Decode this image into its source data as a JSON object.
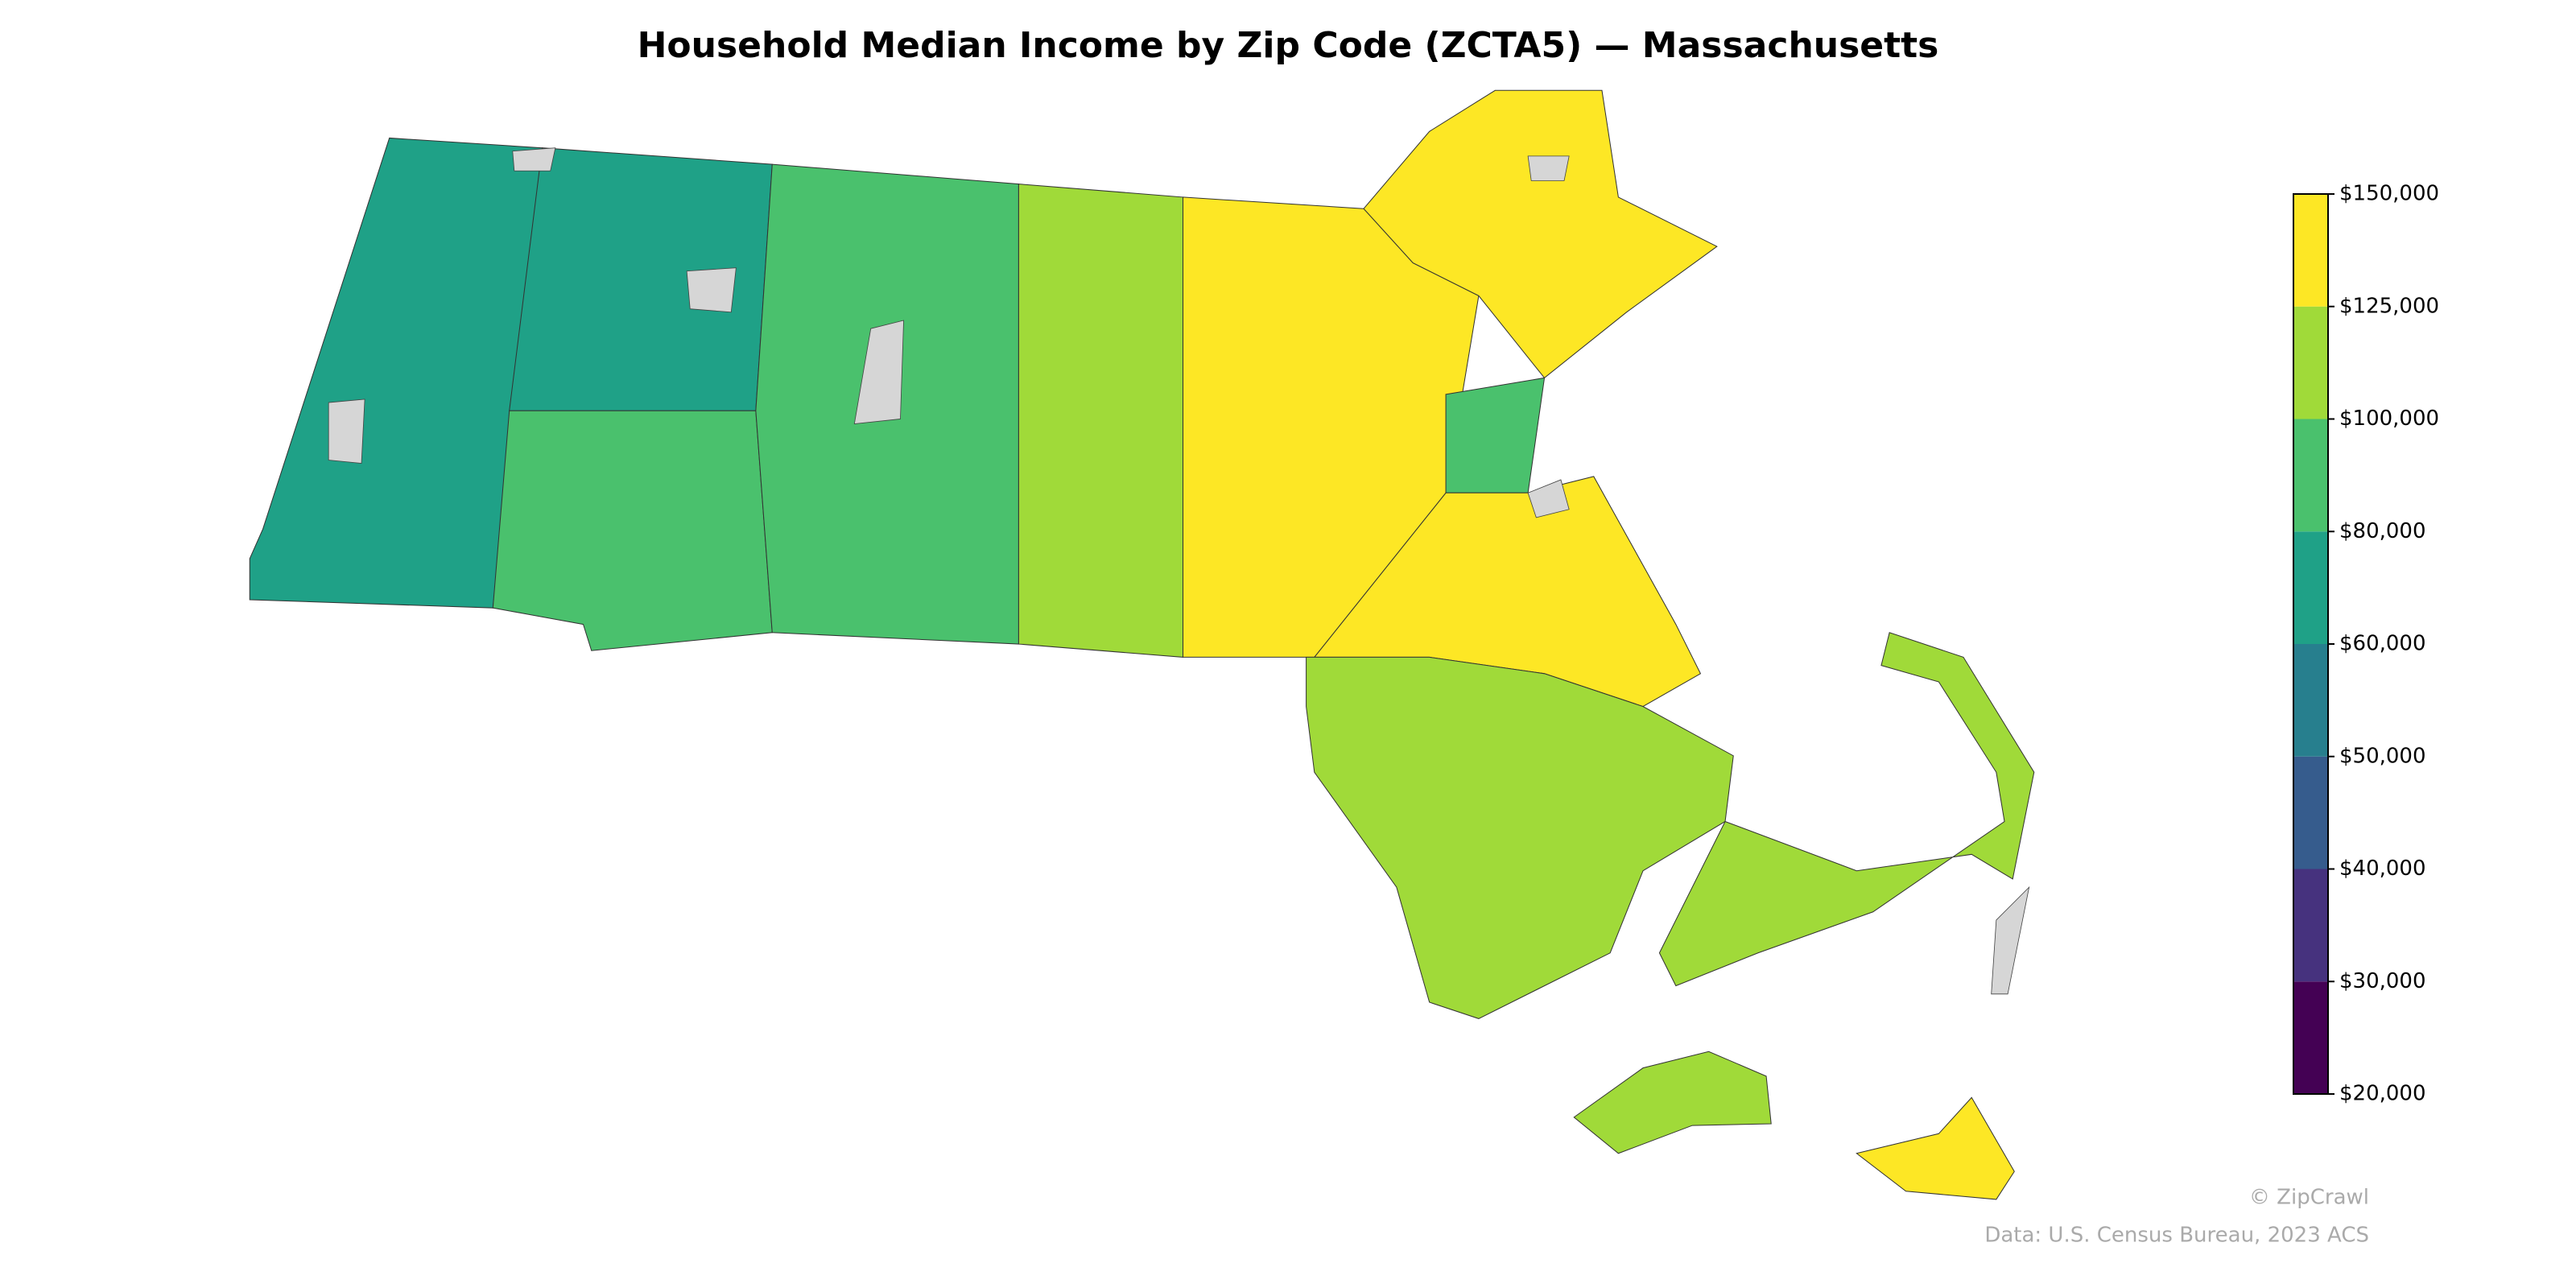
{
  "chart_data": {
    "type": "choropleth",
    "title": "Household Median Income by Zip Code (ZCTA5) — Massachusetts",
    "values": [
      70000,
      75000,
      90000,
      85000,
      110000,
      140000,
      130000,
      90000,
      140000,
      105000,
      100000,
      115000,
      140000
    ],
    "colorbar_ticks": [
      {
        "value": 20000,
        "label": "$20,000"
      },
      {
        "value": 30000,
        "label": "$30,000"
      },
      {
        "value": 40000,
        "label": "$40,000"
      },
      {
        "value": 50000,
        "label": "$50,000"
      },
      {
        "value": 60000,
        "label": "$60,000"
      },
      {
        "value": 80000,
        "label": "$80,000"
      },
      {
        "value": 100000,
        "label": "$100,000"
      },
      {
        "value": 125000,
        "label": "$125,000"
      },
      {
        "value": 150000,
        "label": "$150,000"
      }
    ],
    "colors": [
      "#440154",
      "#46327e",
      "#365c8d",
      "#277f8e",
      "#1fa187",
      "#4ac16d",
      "#a0da39",
      "#fde725"
    ],
    "credit": "© ZipCrawl",
    "source": "Data: U.S. Census Bureau, 2023 ACS"
  }
}
